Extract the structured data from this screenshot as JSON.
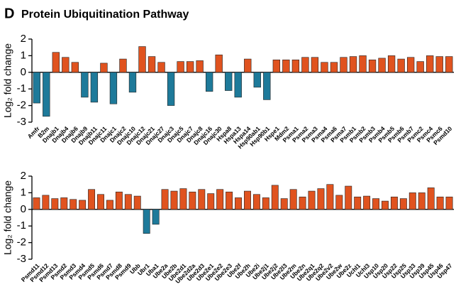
{
  "panel_label": "D",
  "title": "Protein Ubiquitination Pathway",
  "chart_data": [
    {
      "type": "bar",
      "ylabel": "Log₂ fold change",
      "ylim": [
        -3,
        2
      ],
      "yticks": [
        -3,
        -2,
        -1,
        0,
        1,
        2
      ],
      "colors": {
        "positive": "#e0531f",
        "negative": "#1e7a9a"
      },
      "categories": [
        "Amfr",
        "B2m",
        "Dnajb1",
        "Dnajb4",
        "Dnajb6",
        "Dnajb9",
        "Dnajb11",
        "Dnajc11",
        "Dnajc1",
        "Dnajc2",
        "Dnajc10",
        "Dnajc12",
        "Dnajc21",
        "Dnajc27",
        "Dnajc3",
        "Dnajc5",
        "Dnajc7",
        "Dnajc8",
        "Dnajc16",
        "Dnajc30",
        "Hspa8",
        "Hspa13",
        "Hspa14",
        "Hsp90ab1",
        "Hsp90b1",
        "Hspe1",
        "Mdm2",
        "Psma1",
        "Psma2",
        "Psma3",
        "Psma4",
        "Psma6",
        "Psma7",
        "Psmb1",
        "Psmb2",
        "Psmb3",
        "Psmb4",
        "Psmb5",
        "Psmb6",
        "Psmb7",
        "Psmc2",
        "Psmc4",
        "Psmc6",
        "Psmd10"
      ],
      "values": [
        -1.85,
        -2.65,
        1.2,
        0.9,
        0.6,
        -1.5,
        -1.8,
        0.55,
        -1.9,
        0.8,
        -1.2,
        1.55,
        0.95,
        0.6,
        -2.0,
        0.65,
        0.65,
        0.7,
        -1.15,
        1.05,
        -1.1,
        -1.5,
        0.8,
        -0.9,
        -1.65,
        0.75,
        0.75,
        0.75,
        0.9,
        0.9,
        0.6,
        0.6,
        0.9,
        0.95,
        1.0,
        0.75,
        0.85,
        1.0,
        0.8,
        0.9,
        0.65,
        1.0,
        0.95,
        0.95
      ]
    },
    {
      "type": "bar",
      "ylabel": "Log₂ fold change",
      "ylim": [
        -3,
        2
      ],
      "yticks": [
        -3,
        -2,
        -1,
        0,
        1,
        2
      ],
      "colors": {
        "positive": "#e0531f",
        "negative": "#1e7a9a"
      },
      "categories": [
        "Psmd11",
        "Psmd12",
        "Psmd13",
        "Psmd2",
        "Psmd3",
        "Psmd4",
        "Psmd5",
        "Psmd6",
        "Psmd7",
        "Psmd8",
        "Psmd9",
        "Ubb",
        "Ubr1",
        "Uba1",
        "Ube2a",
        "Ube2b",
        "Ube2d1",
        "Ube2d2a",
        "Ube2d3",
        "Ube2e1",
        "Ube2e2",
        "Ube2e3",
        "Ube2f",
        "Ube2h",
        "Ube2i",
        "Ube2j1",
        "Ube2j2",
        "Ube2l3",
        "Ube2m",
        "Ube2n",
        "Ube2q1",
        "Ube2q2",
        "Ube2v2",
        "Ube2w",
        "Ube2z",
        "Uchl1",
        "Uchl3",
        "Usp10",
        "Usp20",
        "Usp22",
        "Usp25",
        "Usp33",
        "Usp39",
        "Usp45",
        "Usp46",
        "Usp47"
      ],
      "values": [
        0.7,
        0.85,
        0.65,
        0.7,
        0.6,
        0.55,
        1.2,
        0.9,
        0.55,
        1.05,
        0.9,
        0.8,
        -1.45,
        -0.9,
        1.2,
        1.1,
        1.25,
        1.05,
        1.2,
        0.95,
        1.2,
        1.05,
        0.7,
        1.1,
        0.9,
        0.7,
        1.45,
        0.65,
        1.2,
        0.75,
        1.1,
        1.25,
        1.5,
        0.85,
        1.4,
        0.75,
        0.8,
        0.65,
        0.5,
        0.75,
        0.65,
        1.0,
        1.0,
        1.3,
        0.75,
        0.75
      ]
    }
  ]
}
